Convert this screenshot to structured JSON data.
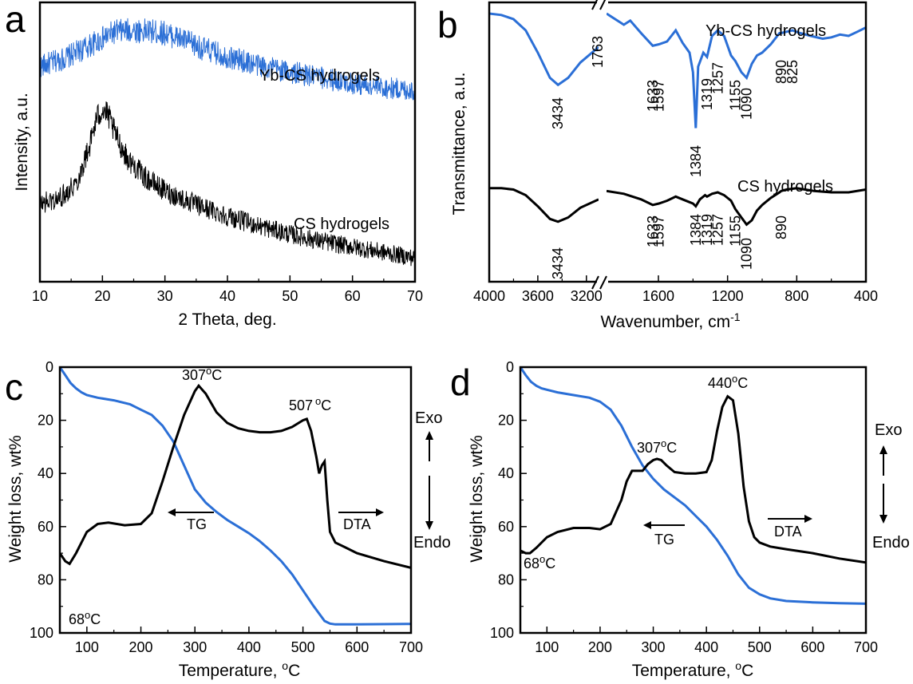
{
  "figure": {
    "width": 1144,
    "height": 857
  },
  "colors": {
    "blue": "#2b6fd6",
    "black": "#000000",
    "frame": "#000000"
  },
  "chart_data": [
    {
      "panel": "a",
      "type": "line",
      "xlabel": "2 Theta, deg.",
      "ylabel": "Intensity, a.u.",
      "xlim": [
        10,
        70
      ],
      "ylim": [
        0,
        10
      ],
      "xticks": [
        10,
        20,
        30,
        40,
        50,
        60,
        70
      ],
      "series": [
        {
          "name": "Yb-CS hydrogels",
          "color": "blue",
          "noise": 0.38,
          "x": [
            10,
            14,
            18,
            22,
            25,
            28,
            30,
            33,
            36,
            40,
            45,
            50,
            55,
            60,
            65,
            70
          ],
          "y": [
            7.7,
            8.0,
            8.45,
            8.95,
            9.0,
            8.95,
            8.9,
            8.65,
            8.35,
            8.05,
            7.75,
            7.5,
            7.3,
            7.1,
            6.95,
            6.85
          ]
        },
        {
          "name": "CS hydrogels",
          "color": "black",
          "noise": 0.48,
          "x": [
            10,
            13,
            16,
            18,
            19,
            20,
            21,
            22,
            24,
            27,
            30,
            35,
            40,
            45,
            50,
            55,
            60,
            65,
            70
          ],
          "y": [
            2.8,
            2.95,
            3.6,
            4.9,
            5.8,
            6.2,
            5.9,
            5.3,
            4.4,
            3.7,
            3.25,
            2.75,
            2.35,
            2.0,
            1.7,
            1.45,
            1.25,
            1.05,
            0.85
          ]
        }
      ],
      "labels": [
        "Yb-CS hydrogels",
        "CS hydrogels"
      ]
    },
    {
      "panel": "b",
      "type": "line",
      "xlabel": "Wavenumber, cm-1",
      "ylabel": "Transmittance, a.u.",
      "x_axis": "reversed and broken between 3100 and 1900 cm-1",
      "segment1": {
        "range": [
          4000,
          3100
        ],
        "ticks": [
          4000,
          3600,
          3200
        ]
      },
      "segment2": {
        "range": [
          1900,
          400
        ],
        "ticks": [
          1600,
          1200,
          800,
          400
        ]
      },
      "ylim": [
        0,
        10
      ],
      "series": [
        {
          "name": "Yb-CS hydrogels",
          "color": "blue",
          "x": [
            4000,
            3900,
            3800,
            3700,
            3600,
            3500,
            3434,
            3350,
            3250,
            3100,
            1900,
            1800,
            1763,
            1700,
            1633,
            1597,
            1550,
            1500,
            1460,
            1420,
            1400,
            1384,
            1370,
            1340,
            1319,
            1290,
            1257,
            1220,
            1180,
            1155,
            1120,
            1090,
            1060,
            1030,
            1000,
            950,
            900,
            890,
            860,
            825,
            780,
            720,
            650,
            600,
            550,
            500,
            450,
            400
          ],
          "y": [
            9.6,
            9.55,
            9.4,
            9.0,
            8.2,
            7.3,
            7.05,
            7.3,
            7.85,
            8.4,
            9.6,
            9.2,
            9.35,
            8.9,
            8.45,
            8.5,
            8.6,
            9.0,
            8.55,
            8.2,
            7.5,
            5.5,
            7.7,
            8.2,
            8.05,
            8.8,
            9.0,
            8.8,
            8.1,
            7.9,
            7.5,
            7.3,
            7.8,
            8.1,
            8.2,
            8.5,
            8.9,
            8.9,
            8.95,
            9.0,
            8.9,
            8.8,
            8.7,
            8.75,
            8.85,
            8.8,
            8.95,
            9.1
          ]
        },
        {
          "name": "CS hydrogels",
          "color": "black",
          "x": [
            4000,
            3900,
            3800,
            3700,
            3600,
            3500,
            3434,
            3350,
            3250,
            3100,
            1900,
            1800,
            1700,
            1633,
            1597,
            1550,
            1500,
            1460,
            1420,
            1400,
            1384,
            1360,
            1330,
            1319,
            1290,
            1257,
            1220,
            1180,
            1155,
            1120,
            1090,
            1060,
            1030,
            1000,
            950,
            900,
            890,
            860,
            800,
            700,
            600,
            500,
            400
          ],
          "y": [
            3.35,
            3.35,
            3.3,
            3.1,
            2.7,
            2.25,
            2.15,
            2.3,
            2.65,
            2.95,
            3.25,
            3.15,
            2.95,
            2.75,
            2.8,
            2.9,
            3.05,
            2.95,
            2.85,
            2.8,
            2.7,
            2.95,
            3.1,
            3.05,
            3.15,
            3.2,
            3.1,
            2.9,
            2.6,
            2.3,
            2.05,
            2.2,
            2.55,
            2.75,
            3.0,
            3.2,
            3.25,
            3.3,
            3.35,
            3.25,
            3.2,
            3.2,
            3.3
          ]
        }
      ],
      "labels": [
        "Yb-CS hydrogels",
        "CS hydrogels"
      ],
      "peak_labels_yb": [
        "3434",
        "1763",
        "1633",
        "1597",
        "1384",
        "1319",
        "1257",
        "1155",
        "1090",
        "890",
        "825"
      ],
      "peak_labels_cs": [
        "3434",
        "1633",
        "1597",
        "1384",
        "1319",
        "1257",
        "1155",
        "1090",
        "890"
      ]
    },
    {
      "panel": "c",
      "type": "line",
      "xlabel": "Temperature, oC",
      "ylabel": "Weight loss, wt%",
      "xlim": [
        50,
        700
      ],
      "ylim_reversed": [
        0,
        100
      ],
      "xticks": [
        100,
        200,
        300,
        400,
        500,
        600,
        700
      ],
      "yticks": [
        0,
        20,
        40,
        60,
        80,
        100
      ],
      "series": [
        {
          "name": "TG",
          "color": "blue",
          "x": [
            50,
            60,
            70,
            80,
            90,
            100,
            120,
            150,
            180,
            200,
            220,
            240,
            260,
            280,
            300,
            320,
            340,
            360,
            380,
            400,
            420,
            440,
            460,
            480,
            500,
            520,
            540,
            550,
            560,
            600,
            650,
            700
          ],
          "y": [
            0,
            3,
            6,
            8,
            9.5,
            10.5,
            11.5,
            12.5,
            14,
            16,
            18,
            22,
            28,
            37,
            46,
            51,
            54.5,
            57.5,
            60,
            62.5,
            65.5,
            69,
            73,
            78,
            84,
            90,
            95.5,
            96.5,
            96.8,
            96.8,
            96.7,
            96.6
          ]
        },
        {
          "name": "DTA",
          "color": "black",
          "x": [
            50,
            60,
            68,
            80,
            100,
            120,
            140,
            170,
            200,
            220,
            240,
            260,
            280,
            300,
            307,
            320,
            340,
            360,
            380,
            400,
            420,
            440,
            460,
            480,
            500,
            507,
            515,
            525,
            530,
            535,
            540,
            545,
            550,
            560,
            580,
            600,
            650,
            700
          ],
          "y": [
            70,
            73,
            74,
            70,
            62,
            59,
            58.5,
            59.5,
            59,
            55,
            43,
            30,
            18,
            9,
            7,
            10,
            17,
            21,
            23,
            24,
            24.5,
            24.5,
            24,
            22.5,
            20,
            19.5,
            24,
            34,
            40,
            37,
            35.5,
            50,
            62,
            66,
            68,
            70,
            73,
            75.5
          ]
        }
      ],
      "annotations": [
        "307°C",
        "507°C",
        "68°C",
        "TG",
        "DTA",
        "Exo",
        "Endo"
      ]
    },
    {
      "panel": "d",
      "type": "line",
      "xlabel": "Temperature, oC",
      "ylabel": "Weight loss, wt%",
      "xlim": [
        50,
        700
      ],
      "ylim_reversed": [
        0,
        100
      ],
      "xticks": [
        100,
        200,
        300,
        400,
        500,
        600,
        700
      ],
      "yticks": [
        0,
        20,
        40,
        60,
        80,
        100
      ],
      "series": [
        {
          "name": "TG",
          "color": "blue",
          "x": [
            50,
            60,
            70,
            80,
            90,
            100,
            120,
            150,
            180,
            200,
            220,
            240,
            260,
            280,
            300,
            320,
            340,
            360,
            380,
            400,
            420,
            440,
            460,
            480,
            500,
            520,
            550,
            600,
            650,
            700
          ],
          "y": [
            0,
            3,
            5.5,
            7,
            8,
            8.5,
            9.5,
            10.5,
            11.5,
            13,
            16,
            22,
            30,
            37,
            42,
            46,
            49,
            52,
            56,
            60,
            65,
            71,
            78,
            83,
            85.5,
            87,
            88,
            88.5,
            88.8,
            89
          ]
        },
        {
          "name": "DTA",
          "color": "black",
          "x": [
            50,
            60,
            68,
            80,
            100,
            120,
            150,
            180,
            200,
            220,
            240,
            250,
            260,
            270,
            280,
            290,
            300,
            307,
            315,
            325,
            340,
            360,
            380,
            400,
            410,
            420,
            430,
            440,
            450,
            460,
            470,
            480,
            490,
            500,
            520,
            550,
            600,
            650,
            700
          ],
          "y": [
            69,
            70,
            70,
            68,
            64,
            62,
            60.5,
            60.5,
            61,
            59,
            50,
            43,
            39,
            39,
            39,
            36.5,
            35,
            34.5,
            35,
            37,
            39.5,
            40,
            40,
            39.5,
            35,
            24,
            15,
            11,
            12.5,
            25,
            45,
            58,
            64,
            66,
            67.5,
            68.5,
            70,
            72,
            73.5
          ]
        }
      ],
      "annotations": [
        "440°C",
        "307°C",
        "68°C",
        "TG",
        "DTA",
        "Exo",
        "Endo"
      ]
    }
  ],
  "text": {
    "panel_a": "a",
    "panel_b": "b",
    "panel_c": "c",
    "panel_d": "d",
    "a_xlabel": "2 Theta, deg.",
    "a_ylabel": "Intensity, a.u.",
    "a_yb": "Yb-CS hydrogels",
    "a_cs": "CS hydrogels",
    "b_xlabel": "Wavenumber, cm",
    "b_xlabel_sup": "-1",
    "b_ylabel": "Transmittance, a.u.",
    "b_yb": "Yb-CS hydrogels",
    "b_cs": "CS hydrogels",
    "temp_label_main": "Temperature, ",
    "temp_label_sup": "o",
    "temp_label_end": "C",
    "weight_label": "Weight loss, wt%",
    "c_307": "307",
    "c_307_sup": "o",
    "c_307_end": "C",
    "c_507": "507",
    "c_507_sup": "o",
    "c_507_end": "C",
    "c_68": "68",
    "c_68_sup": "o",
    "c_68_end": "C",
    "d_440": "440",
    "d_440_sup": "o",
    "d_440_end": "C",
    "d_307": "307",
    "d_307_sup": "o",
    "d_307_end": "C",
    "d_68": "68",
    "d_68_sup": "o",
    "d_68_end": "C",
    "tg": "TG",
    "dta": "DTA",
    "exo": "Exo",
    "endo": "Endo"
  }
}
